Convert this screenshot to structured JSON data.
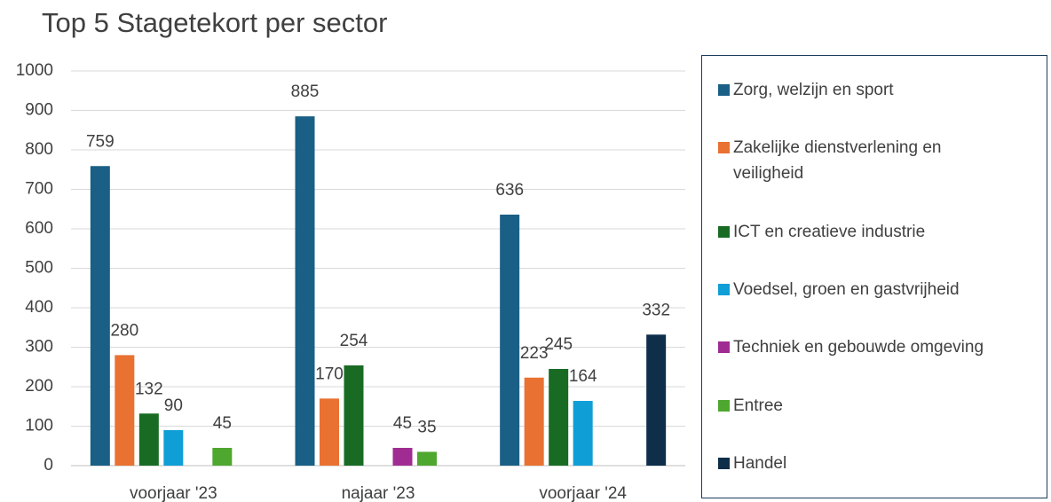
{
  "chart_data": {
    "type": "bar",
    "title": "Top 5 Stagetekort per sector",
    "categories": [
      "voorjaar '23",
      "najaar '23",
      "voorjaar '24"
    ],
    "series": [
      {
        "name": "Zorg, welzijn en sport",
        "color": "#1a5f85",
        "values": [
          759,
          885,
          636
        ]
      },
      {
        "name": "Zakelijke dienstverlening en veiligheid",
        "color": "#e97132",
        "values": [
          280,
          170,
          223
        ]
      },
      {
        "name": "ICT en creatieve industrie",
        "color": "#196b24",
        "values": [
          132,
          254,
          245
        ]
      },
      {
        "name": "Voedsel, groen en gastvrijheid",
        "color": "#0f9ed5",
        "values": [
          90,
          null,
          164
        ]
      },
      {
        "name": "Techniek en gebouwde omgeving",
        "color": "#a02b93",
        "values": [
          null,
          45,
          null
        ]
      },
      {
        "name": "Entree",
        "color": "#4ea72e",
        "values": [
          45,
          35,
          null
        ]
      },
      {
        "name": "Handel",
        "color": "#0e2e4a",
        "values": [
          null,
          null,
          332
        ]
      }
    ],
    "ylim": [
      0,
      1000
    ],
    "yticks": [
      0,
      100,
      200,
      300,
      400,
      500,
      600,
      700,
      800,
      900,
      1000
    ],
    "grid": true,
    "legend": "right"
  }
}
